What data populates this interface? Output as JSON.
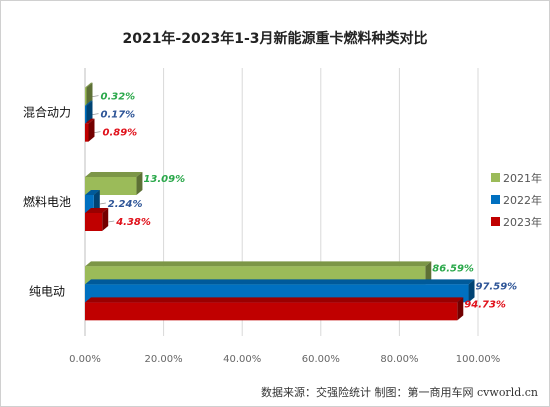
{
  "chart_data": {
    "type": "bar",
    "orientation": "horizontal",
    "title": "2021年-2023年1-3月新能源重卡燃料种类对比",
    "categories": [
      "混合动力",
      "燃料电池",
      "纯电动"
    ],
    "xlim": [
      0,
      100
    ],
    "x_ticks": [
      "0.00%",
      "20.00%",
      "40.00%",
      "60.00%",
      "80.00%",
      "100.00%"
    ],
    "grid": "vertical",
    "legend_position": "right",
    "series": [
      {
        "name": "2021年",
        "color": "#9bbb59",
        "values": [
          0.32,
          13.09,
          86.59
        ],
        "labels": [
          "0.32%",
          "13.09%",
          "86.59%"
        ],
        "label_color": "#2aa84a"
      },
      {
        "name": "2022年",
        "color": "#0070c0",
        "values": [
          0.17,
          2.24,
          97.59
        ],
        "labels": [
          "0.17%",
          "2.24%",
          "97.59%"
        ],
        "label_color": "#2e5597"
      },
      {
        "name": "2023年",
        "color": "#c00000",
        "values": [
          0.89,
          4.38,
          94.73
        ],
        "labels": [
          "0.89%",
          "4.38%",
          "94.73%"
        ],
        "label_color": "#e0101a"
      }
    ],
    "source": "数据来源：交强险统计 制图：第一商用车网 cvworld.cn"
  }
}
